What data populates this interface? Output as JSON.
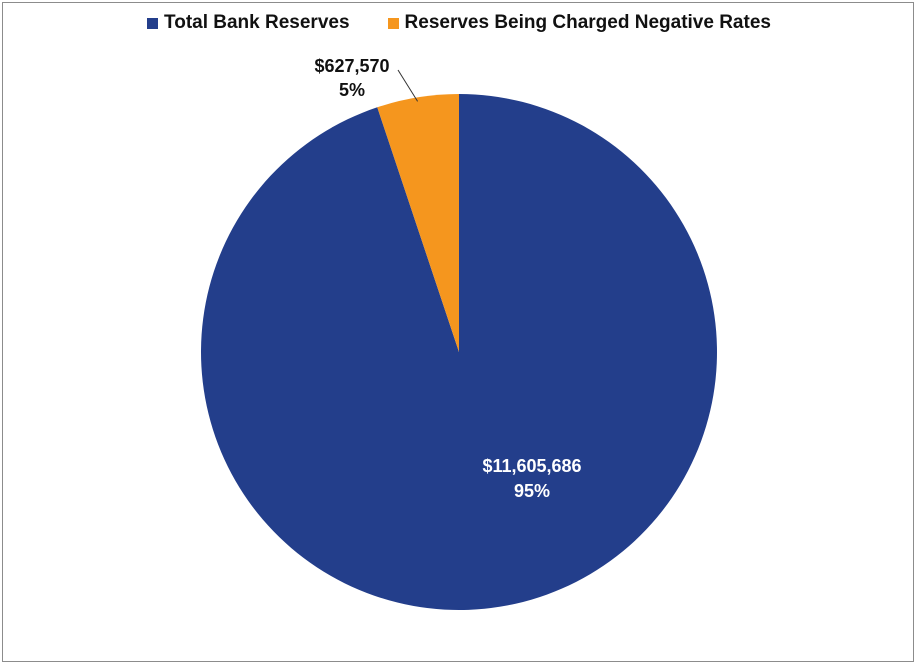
{
  "chart_data": {
    "type": "pie",
    "legend": "top",
    "slices": [
      {
        "label": "Total Bank Reserves",
        "value": 11605686,
        "value_label": "$11,605,686",
        "percent_label": "95%",
        "color": "#233e8b"
      },
      {
        "label": "Reserves Being Charged Negative Rates",
        "value": 627570,
        "value_label": "$627,570",
        "percent_label": "5%",
        "color": "#f5961e"
      }
    ]
  }
}
